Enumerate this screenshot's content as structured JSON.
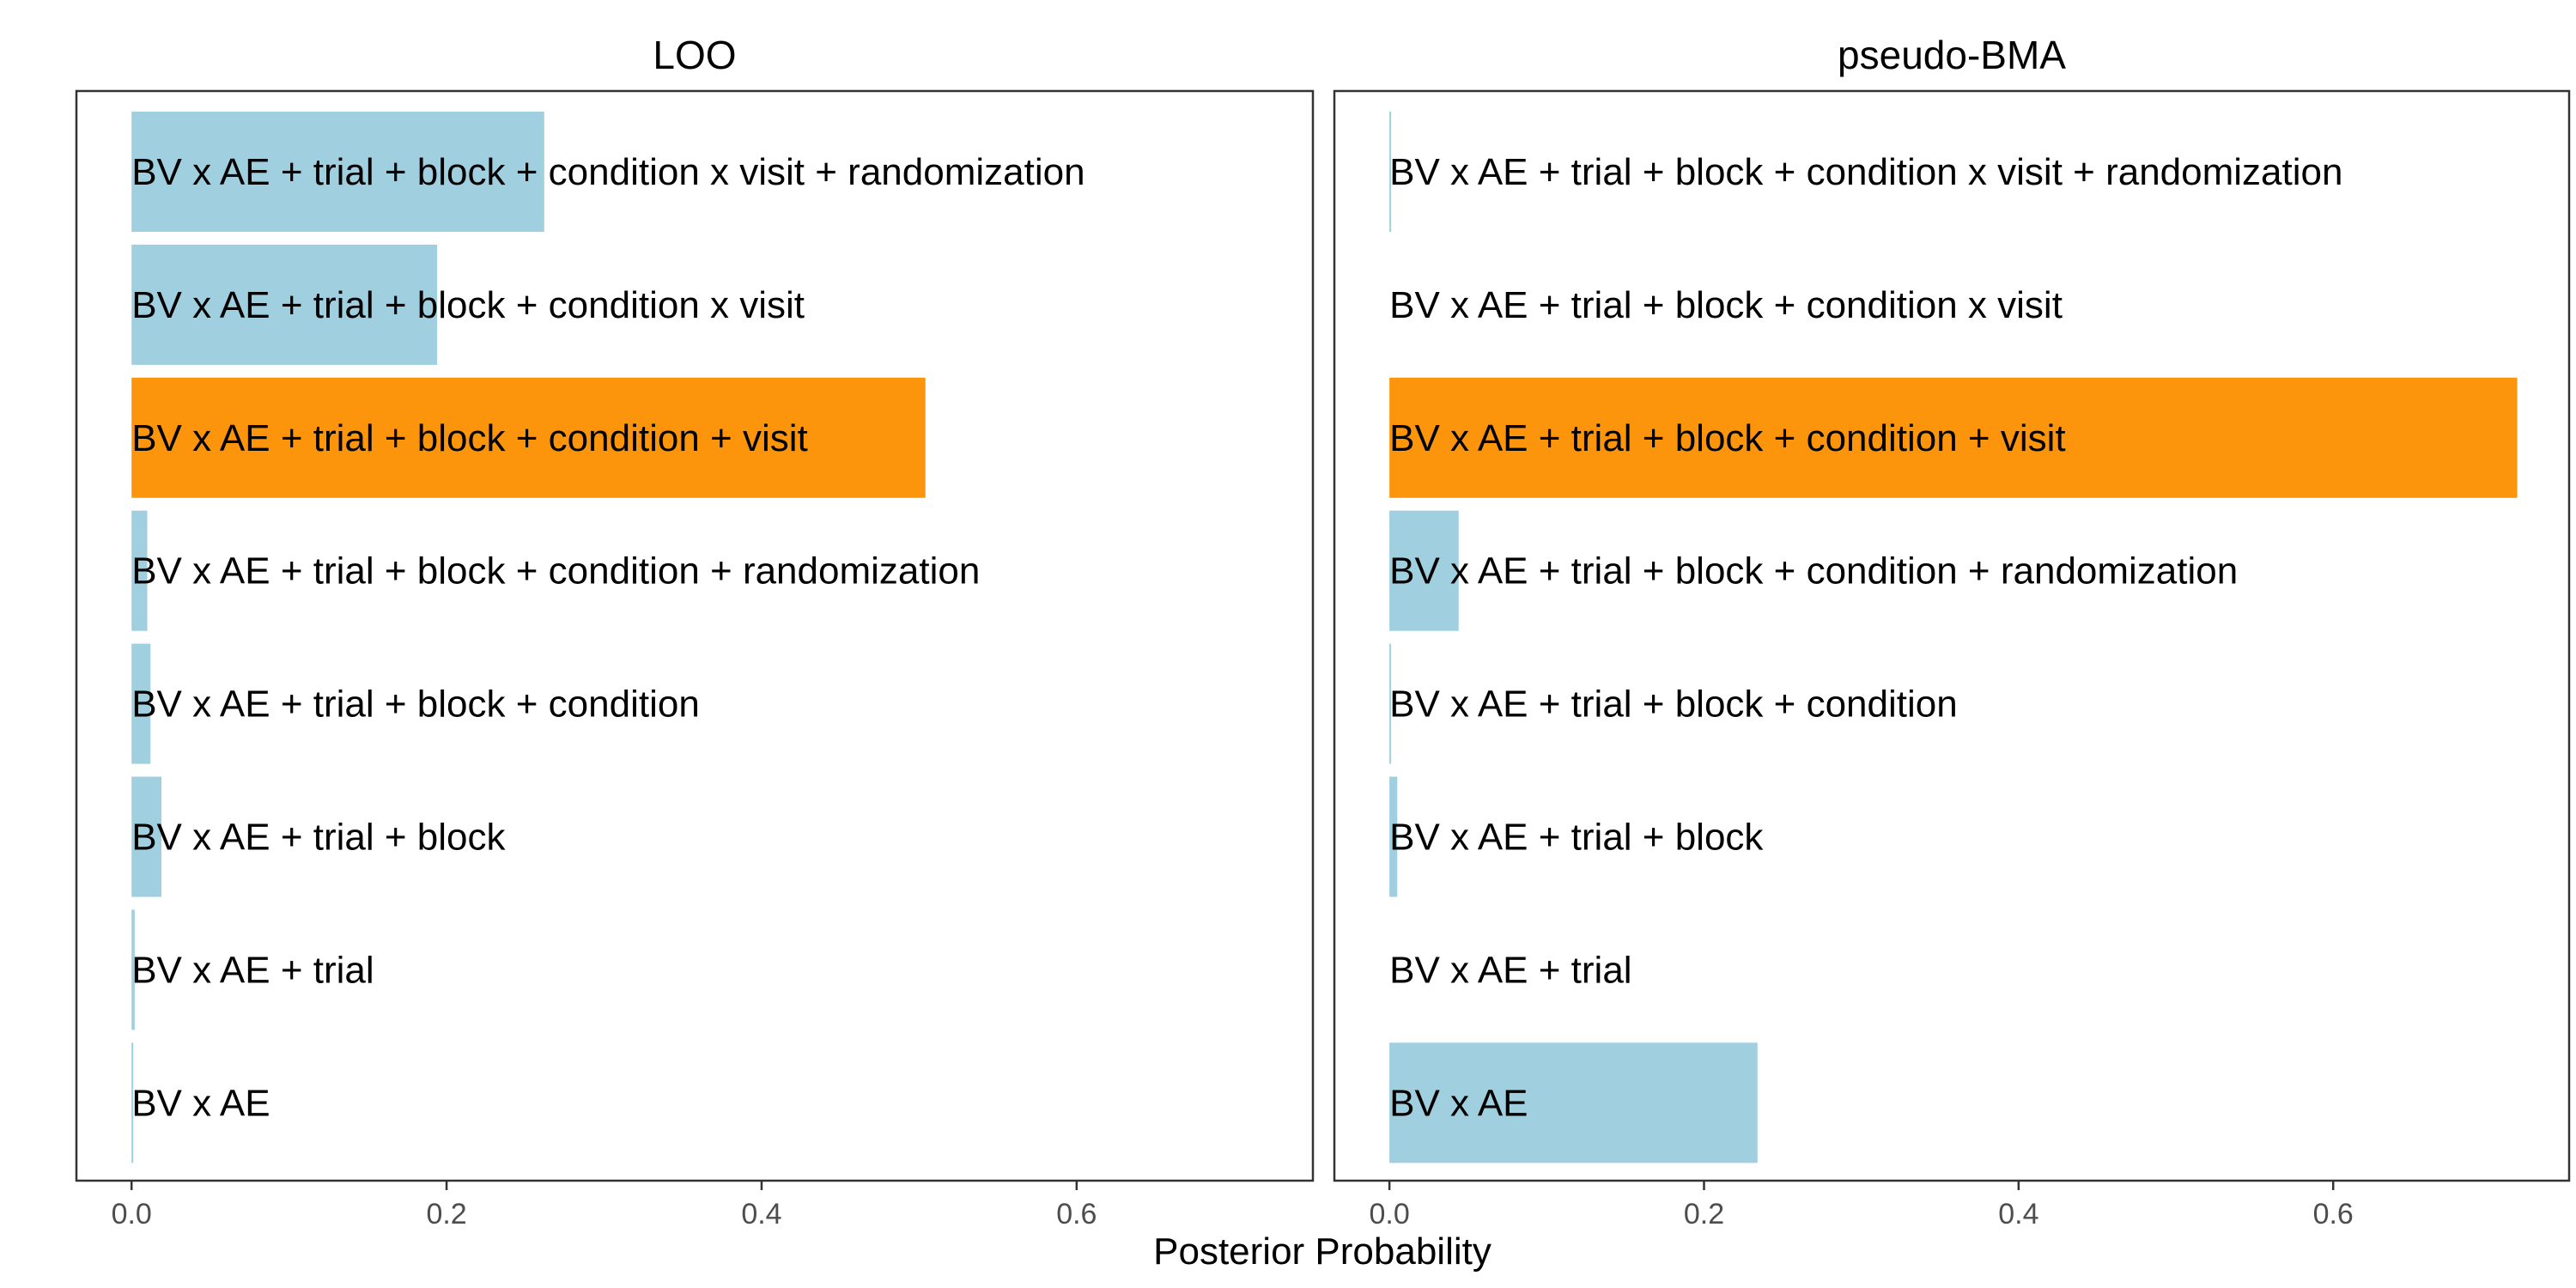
{
  "chart_data": {
    "type": "bar",
    "orientation": "horizontal",
    "xlabel": "Posterior Probability",
    "xlim": [
      -0.035,
      0.75
    ],
    "xticks": [
      0.0,
      0.2,
      0.4,
      0.6
    ],
    "xtick_labels": [
      "0.0",
      "0.2",
      "0.4",
      "0.6"
    ],
    "grid": false,
    "colors": {
      "default": "#a0cfe0",
      "highlight": "#fd950c"
    },
    "categories": [
      "BV x AE + trial + block + condition x visit + randomization",
      "BV x AE + trial + block + condition x visit",
      "BV x AE + trial + block + condition + visit",
      "BV x AE + trial + block + condition + randomization",
      "BV x AE + trial + block + condition",
      "BV x AE + trial + block",
      "BV x AE + trial",
      "BV x AE"
    ],
    "highlight_category": "BV x AE + trial + block + condition + visit",
    "panels": [
      {
        "title": "LOO",
        "values": [
          0.262,
          0.194,
          0.504,
          0.01,
          0.012,
          0.019,
          0.002,
          0.001
        ]
      },
      {
        "title": "pseudo-BMA",
        "values": [
          0.001,
          0.0,
          0.717,
          0.044,
          0.001,
          0.005,
          0.0,
          0.234
        ]
      }
    ]
  }
}
